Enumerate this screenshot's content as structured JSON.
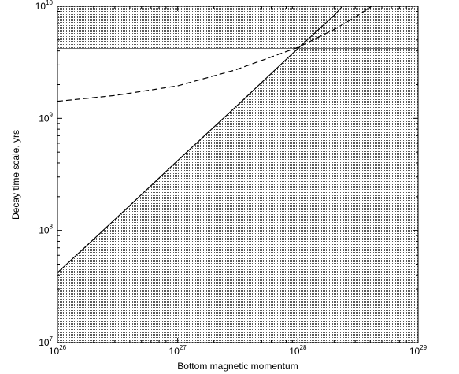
{
  "chart_data": {
    "type": "line",
    "xlabel": "Bottom magnetic momentum",
    "ylabel": "Decay time scale, yrs",
    "x_scale": "log",
    "y_scale": "log",
    "xlim": [
      1e+26,
      1e+29
    ],
    "ylim": [
      10000000.0,
      10000000000.0
    ],
    "x_ticks": [
      {
        "base": "10",
        "exp": "26",
        "value": 1e+26
      },
      {
        "base": "10",
        "exp": "27",
        "value": 1e+27
      },
      {
        "base": "10",
        "exp": "28",
        "value": 1e+28
      },
      {
        "base": "10",
        "exp": "29",
        "value": 1e+29
      }
    ],
    "y_ticks": [
      {
        "base": "10",
        "exp": "7",
        "value": 10000000.0
      },
      {
        "base": "10",
        "exp": "8",
        "value": 100000000.0
      },
      {
        "base": "10",
        "exp": "9",
        "value": 1000000000.0
      },
      {
        "base": "10",
        "exp": "10",
        "value": 10000000000.0
      }
    ],
    "grid": false,
    "series": [
      {
        "style": "solid",
        "x": [
          1e+26,
          3e+26,
          1e+27,
          3e+27,
          1e+28,
          2e+28,
          2.35e+28
        ],
        "y": [
          42000000.0,
          125000000.0,
          420000000.0,
          1250000000.0,
          4200000000.0,
          8300000000.0,
          10000000000.0
        ]
      },
      {
        "style": "dashed",
        "x": [
          1e+26,
          3e+26,
          1e+27,
          3e+27,
          1e+28,
          2e+28,
          3e+28,
          4.1e+28
        ],
        "y": [
          1420000000.0,
          1600000000.0,
          1950000000.0,
          2700000000.0,
          4300000000.0,
          6200000000.0,
          8000000000.0,
          10000000000.0
        ]
      }
    ],
    "shaded_regions": [
      {
        "description_free": true,
        "x": [
          1e+26,
          1e+29
        ],
        "y_top": 10000000000.0,
        "y_bottom": 4200000000.0
      },
      {
        "x_curve": "solid-below",
        "x_range": [
          1e+26,
          1e+29
        ]
      }
    ],
    "hline": 4200000000.0
  }
}
